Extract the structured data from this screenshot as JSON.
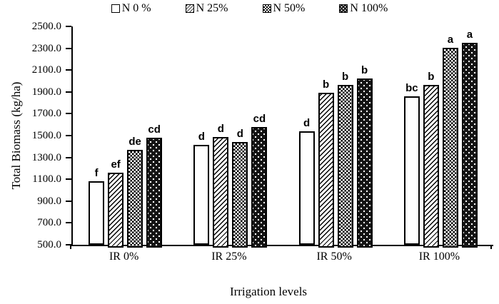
{
  "chart_data": {
    "type": "bar",
    "title": "",
    "xlabel": "Irrigation levels",
    "ylabel": "Total Biomass (kg/ha)",
    "ylim": [
      500.0,
      2500.0
    ],
    "ytick_step": 200.0,
    "ytick_decimals": 1,
    "grid": false,
    "legend_position": "top",
    "categories": [
      "IR 0%",
      "IR 25%",
      "IR 50%",
      "IR 100%"
    ],
    "series": [
      {
        "name": "N 0 %",
        "pattern": "plain",
        "values": [
          1080,
          1415,
          1540,
          1860
        ],
        "sig_labels": [
          "f",
          "d",
          "d",
          "bc"
        ]
      },
      {
        "name": "N 25%",
        "pattern": "diagonal-hatch",
        "values": [
          1160,
          1485,
          1890,
          1965
        ],
        "sig_labels": [
          "ef",
          "d",
          "b",
          "b"
        ]
      },
      {
        "name": "N 50%",
        "pattern": "checkerboard",
        "values": [
          1370,
          1440,
          1965,
          2305
        ],
        "sig_labels": [
          "de",
          "d",
          "b",
          "a"
        ]
      },
      {
        "name": "N 100%",
        "pattern": "black-white-dots",
        "values": [
          1480,
          1580,
          2025,
          2350
        ],
        "sig_labels": [
          "cd",
          "cd",
          "b",
          "a"
        ]
      }
    ],
    "colors": {
      "foreground": "#000000",
      "background": "#ffffff"
    }
  }
}
